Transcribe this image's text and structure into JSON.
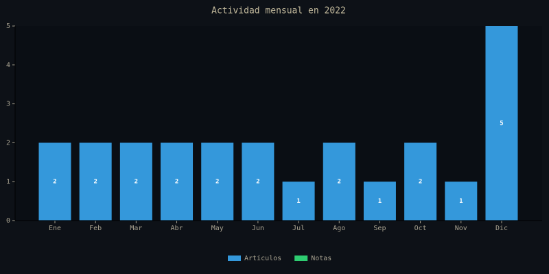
{
  "chart_data": {
    "type": "stacked-bar",
    "title": "Actividad mensual en 2022",
    "categories": [
      "Ene",
      "Feb",
      "Mar",
      "Abr",
      "May",
      "Jun",
      "Jul",
      "Ago",
      "Sep",
      "Oct",
      "Nov",
      "Dic"
    ],
    "series": [
      {
        "name": "Artículos",
        "color": "#3498db",
        "values": [
          2,
          2,
          2,
          2,
          2,
          2,
          1,
          2,
          1,
          2,
          1,
          5
        ]
      },
      {
        "name": "Notas",
        "color": "#2ecc71",
        "values": [
          0,
          0,
          0,
          0,
          0,
          0,
          0,
          0,
          0,
          0,
          0,
          0
        ]
      }
    ],
    "ylim": [
      0,
      5
    ],
    "yticks": [
      0,
      1,
      2,
      3,
      4,
      5
    ],
    "legend": "bottom"
  }
}
